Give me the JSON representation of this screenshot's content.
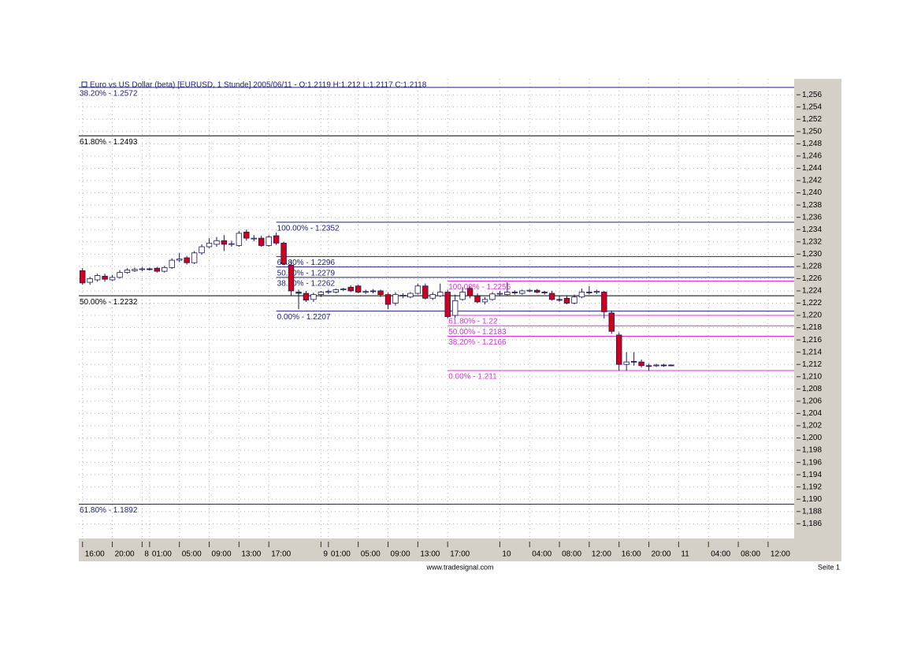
{
  "chart_data": {
    "type": "candlestick",
    "title": "Euro vs US Dollar (beta) [EURUSD, 1 Stunde] 2005/06/11 - O:1.2119 H:1.212 L:1.2117 C:1.2118",
    "footer": "www.tradesignal.com",
    "page_label": "Seite 1",
    "up_color": "#ffffff",
    "down_color": "#d0001a",
    "outline_color": "#1a1a5a",
    "grid": true,
    "categories": [
      "16:00",
      null,
      null,
      null,
      "20:00",
      null,
      null,
      null,
      "8",
      "01:00",
      null,
      null,
      null,
      "05:00",
      null,
      null,
      null,
      "09:00",
      null,
      null,
      null,
      "13:00",
      null,
      null,
      null,
      "17:00",
      null,
      null,
      null,
      null,
      null,
      null,
      "9",
      "01:00",
      null,
      null,
      null,
      "05:00",
      null,
      null,
      null,
      "09:00",
      null,
      null,
      null,
      "13:00",
      null,
      null,
      null,
      "17:00",
      null,
      null,
      null,
      null,
      null,
      null,
      "10",
      null,
      null,
      null,
      "04:00",
      null,
      null,
      null,
      "08:00",
      null,
      null,
      null,
      "12:00",
      null,
      null,
      null,
      "16:00",
      null,
      null,
      null,
      "20:00",
      null,
      null,
      null,
      "11",
      null,
      null,
      null,
      "04:00",
      null,
      null,
      null,
      "08:00",
      null,
      null,
      null,
      "12:00",
      null,
      null,
      null
    ],
    "open": [
      1.2273,
      1.2254,
      1.2258,
      1.2264,
      1.2258,
      1.2262,
      1.227,
      1.2273,
      1.2275,
      1.2276,
      1.2277,
      1.2272,
      1.2278,
      1.229,
      1.2294,
      1.2286,
      1.2302,
      1.2312,
      1.2316,
      1.2322,
      1.2316,
      1.2314,
      1.2336,
      1.2325,
      1.2326,
      1.2314,
      1.233,
      1.2318,
      1.2282,
      1.2238,
      1.2236,
      1.2226,
      1.2234,
      1.2238,
      1.2238,
      1.2242,
      1.2246,
      1.2248,
      1.2238,
      1.224,
      1.224,
      1.2234,
      1.222,
      1.2232,
      1.223,
      1.2236,
      1.2248,
      1.2228,
      1.2232,
      1.2238,
      1.22,
      1.2226,
      1.2244,
      1.2232,
      1.2222,
      1.2226,
      1.2235,
      1.2234,
      1.2238,
      1.2236,
      1.224,
      1.2241,
      1.2238,
      1.2236,
      1.2226,
      1.2228,
      1.222,
      1.223,
      1.2238,
      1.2238,
      1.2238,
      1.2204,
      1.2168,
      1.212,
      1.2125,
      1.2124,
      1.2118,
      1.2118,
      1.2119,
      1.2119,
      null,
      null,
      null,
      null,
      null,
      null,
      null,
      null,
      null,
      null,
      null,
      null,
      null,
      null,
      null,
      null
    ],
    "high": [
      1.2277,
      1.2263,
      1.2268,
      1.2268,
      1.2266,
      1.2274,
      1.2277,
      1.2278,
      1.2279,
      1.2278,
      1.2279,
      1.2281,
      1.2293,
      1.2302,
      1.2297,
      1.2305,
      1.2316,
      1.2326,
      1.2328,
      1.2331,
      1.2322,
      1.2338,
      1.234,
      1.2331,
      1.233,
      1.2331,
      1.2335,
      1.232,
      1.229,
      1.2242,
      1.224,
      1.2237,
      1.224,
      1.2242,
      1.2244,
      1.2245,
      1.2249,
      1.225,
      1.2242,
      1.2243,
      1.2242,
      1.2237,
      1.2238,
      1.2236,
      1.2238,
      1.2252,
      1.2252,
      1.2238,
      1.2252,
      1.2242,
      1.2234,
      1.2246,
      1.2248,
      1.2236,
      1.223,
      1.2238,
      1.224,
      1.2254,
      1.2241,
      1.2242,
      1.2243,
      1.2243,
      1.224,
      1.224,
      1.2232,
      1.2232,
      1.2234,
      1.2244,
      1.2248,
      1.2242,
      1.224,
      1.2208,
      1.2172,
      1.214,
      1.214,
      1.2128,
      1.2121,
      1.2121,
      1.2121,
      1.212,
      null,
      null,
      null,
      null,
      null,
      null,
      null,
      null,
      null,
      null,
      null,
      null,
      null,
      null,
      null,
      null
    ],
    "low": [
      1.225,
      1.225,
      1.2255,
      1.2255,
      1.2256,
      1.226,
      1.2268,
      1.2271,
      1.2272,
      1.2273,
      1.227,
      1.227,
      1.2276,
      1.2287,
      1.2283,
      1.2284,
      1.2299,
      1.231,
      1.2312,
      1.2305,
      1.2312,
      1.2312,
      1.2322,
      1.2321,
      1.2312,
      1.2312,
      1.2315,
      1.2282,
      1.2232,
      1.221,
      1.2222,
      1.2222,
      1.223,
      1.2235,
      1.2236,
      1.224,
      1.2238,
      1.2236,
      1.2235,
      1.2236,
      1.223,
      1.221,
      1.2216,
      1.2228,
      1.2228,
      1.2234,
      1.2226,
      1.2225,
      1.223,
      1.2195,
      1.2196,
      1.2224,
      1.2228,
      1.222,
      1.2218,
      1.2224,
      1.2232,
      1.2232,
      1.2234,
      1.2234,
      1.2238,
      1.2236,
      1.2234,
      1.2224,
      1.2222,
      1.2218,
      1.2218,
      1.2228,
      1.2234,
      1.2235,
      1.2195,
      1.217,
      1.211,
      1.211,
      1.2118,
      1.2115,
      1.211,
      1.2116,
      1.2116,
      1.2117,
      null,
      null,
      null,
      null,
      null,
      null,
      null,
      null,
      null,
      null,
      null,
      null,
      null,
      null,
      null,
      null
    ],
    "close": [
      1.2253,
      1.226,
      1.2265,
      1.2259,
      1.2262,
      1.227,
      1.2274,
      1.2275,
      1.2276,
      1.2275,
      1.2272,
      1.2278,
      1.229,
      1.2292,
      1.2286,
      1.2302,
      1.2312,
      1.2318,
      1.2322,
      1.2316,
      1.2317,
      1.2334,
      1.2326,
      1.2326,
      1.2314,
      1.2328,
      1.2318,
      1.2284,
      1.224,
      1.2236,
      1.2225,
      1.2234,
      1.2238,
      1.2239,
      1.2242,
      1.2243,
      1.224,
      1.2238,
      1.2239,
      1.2239,
      1.2234,
      1.2218,
      1.2234,
      1.2233,
      1.2236,
      1.2248,
      1.2228,
      1.2234,
      1.2238,
      1.2198,
      1.2224,
      1.2238,
      1.2232,
      1.2222,
      1.2226,
      1.2235,
      1.2236,
      1.2238,
      1.2237,
      1.224,
      1.2241,
      1.2238,
      1.2237,
      1.2226,
      1.2225,
      1.222,
      1.223,
      1.2238,
      1.2237,
      1.2239,
      1.2206,
      1.2174,
      1.212,
      1.2124,
      1.2124,
      1.2118,
      1.2117,
      1.2119,
      1.2118,
      1.2118,
      null,
      null,
      null,
      null,
      null,
      null,
      null,
      null,
      null,
      null,
      null,
      null,
      null,
      null,
      null,
      null
    ],
    "levels": [
      {
        "label": "38.20% - 1.2572",
        "value": 1.2572,
        "from": 0,
        "color": "#22227a"
      },
      {
        "label": "61.80% - 1.2493",
        "value": 1.2493,
        "from": 0,
        "color": "#000000"
      },
      {
        "label": "50.00% - 1.2232",
        "value": 1.2232,
        "from": 0,
        "color": "#000000"
      },
      {
        "label": "61.80% - 1.1892",
        "value": 1.1892,
        "from": 0,
        "color": "#22227a"
      },
      {
        "label": "100.00% - 1.2352",
        "value": 1.2352,
        "from": 26,
        "color": "#22227a"
      },
      {
        "label": "61.80% - 1.2296",
        "value": 1.2296,
        "from": 26,
        "color": "#22227a"
      },
      {
        "label": "50.00% - 1.2279",
        "value": 1.2279,
        "from": 26,
        "color": "#22227a"
      },
      {
        "label": "38.20% - 1.2262",
        "value": 1.2262,
        "from": 26,
        "color": "#22227a"
      },
      {
        "label": "0.00% - 1.2207",
        "value": 1.2207,
        "from": 26,
        "color": "#22227a"
      },
      {
        "label": "100.00% - 1.2256",
        "value": 1.2256,
        "from": 49,
        "color": "#e030e0"
      },
      {
        "label": "61.80% - 1.22",
        "value": 1.22,
        "from": 49,
        "color": "#e030e0"
      },
      {
        "label": "50.00% - 1.2183",
        "value": 1.2183,
        "from": 49,
        "color": "#e030e0"
      },
      {
        "label": "38.20% - 1.2166",
        "value": 1.2166,
        "from": 49,
        "color": "#e030e0"
      },
      {
        "label": "0.00% - 1.211",
        "value": 1.211,
        "from": 49,
        "color": "#e030e0"
      }
    ],
    "ylim": [
      1.1836,
      1.2586
    ],
    "yticks": [
      {
        "value": 1.256,
        "label": "1,256"
      },
      {
        "value": 1.254,
        "label": "1,254"
      },
      {
        "value": 1.252,
        "label": "1,252"
      },
      {
        "value": 1.25,
        "label": "1,250"
      },
      {
        "value": 1.248,
        "label": "1,248"
      },
      {
        "value": 1.246,
        "label": "1,246"
      },
      {
        "value": 1.244,
        "label": "1,244"
      },
      {
        "value": 1.242,
        "label": "1,242"
      },
      {
        "value": 1.24,
        "label": "1,240"
      },
      {
        "value": 1.238,
        "label": "1,238"
      },
      {
        "value": 1.236,
        "label": "1,236"
      },
      {
        "value": 1.234,
        "label": "1,234"
      },
      {
        "value": 1.232,
        "label": "1,232"
      },
      {
        "value": 1.23,
        "label": "1,230"
      },
      {
        "value": 1.228,
        "label": "1,228"
      },
      {
        "value": 1.226,
        "label": "1,226"
      },
      {
        "value": 1.224,
        "label": "1,224"
      },
      {
        "value": 1.222,
        "label": "1,222"
      },
      {
        "value": 1.22,
        "label": "1,220"
      },
      {
        "value": 1.218,
        "label": "1,218"
      },
      {
        "value": 1.216,
        "label": "1,216"
      },
      {
        "value": 1.214,
        "label": "1,214"
      },
      {
        "value": 1.212,
        "label": "1,212"
      },
      {
        "value": 1.21,
        "label": "1,210"
      },
      {
        "value": 1.208,
        "label": "1,208"
      },
      {
        "value": 1.206,
        "label": "1,206"
      },
      {
        "value": 1.204,
        "label": "1,204"
      },
      {
        "value": 1.202,
        "label": "1,202"
      },
      {
        "value": 1.2,
        "label": "1,200"
      },
      {
        "value": 1.198,
        "label": "1,198"
      },
      {
        "value": 1.196,
        "label": "1,196"
      },
      {
        "value": 1.194,
        "label": "1,194"
      },
      {
        "value": 1.192,
        "label": "1,192"
      },
      {
        "value": 1.19,
        "label": "1,190"
      },
      {
        "value": 1.188,
        "label": "1,188"
      },
      {
        "value": 1.186,
        "label": "1,186"
      }
    ]
  }
}
